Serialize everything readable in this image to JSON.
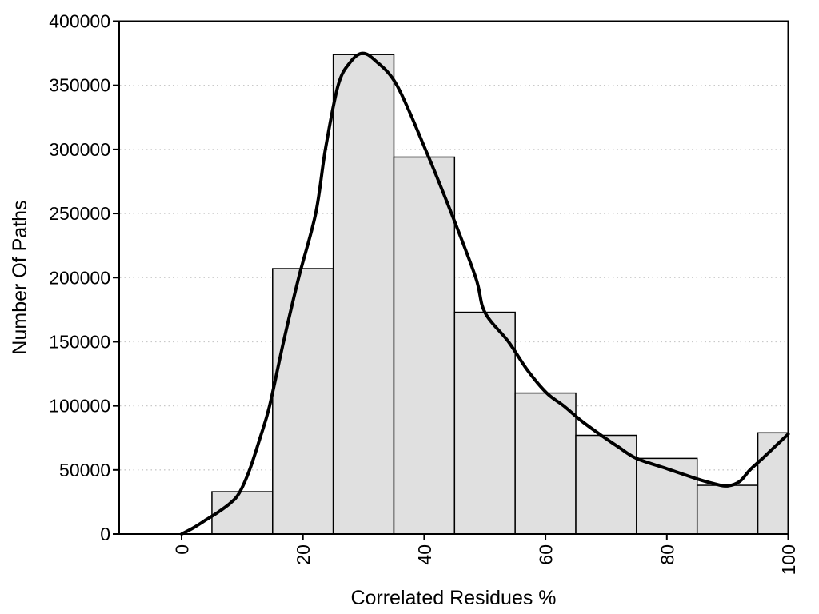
{
  "chart_data": {
    "type": "bar",
    "subtype": "histogram-with-density-curve",
    "title": "",
    "xlabel": "Correlated Residues %",
    "ylabel": "Number Of Paths",
    "xlim": [
      -10.3,
      100
    ],
    "ylim": [
      0,
      400000
    ],
    "x_ticks": [
      0,
      20,
      40,
      60,
      80,
      100
    ],
    "y_ticks": [
      0,
      50000,
      100000,
      150000,
      200000,
      250000,
      300000,
      350000,
      400000
    ],
    "grid": "horizontal-dotted",
    "grid_levels": [
      50000,
      100000,
      150000,
      200000,
      250000,
      300000,
      350000
    ],
    "legend_position": "none",
    "categories": [
      "5-15",
      "15-25",
      "25-35",
      "35-45",
      "45-55",
      "55-65",
      "65-75",
      "75-85",
      "85-95",
      "95-100"
    ],
    "bars": [
      {
        "from": 5,
        "to": 15,
        "value": 33000
      },
      {
        "from": 15,
        "to": 25,
        "value": 207000
      },
      {
        "from": 25,
        "to": 35,
        "value": 374000
      },
      {
        "from": 35,
        "to": 45,
        "value": 294000
      },
      {
        "from": 45,
        "to": 55,
        "value": 173000
      },
      {
        "from": 55,
        "to": 65,
        "value": 110000
      },
      {
        "from": 65,
        "to": 75,
        "value": 77000
      },
      {
        "from": 75,
        "to": 85,
        "value": 59000
      },
      {
        "from": 85,
        "to": 95,
        "value": 38000
      },
      {
        "from": 95,
        "to": 100,
        "value": 79000
      }
    ],
    "density_curve": [
      [
        0,
        0
      ],
      [
        2,
        5000
      ],
      [
        4,
        11000
      ],
      [
        6,
        17000
      ],
      [
        8,
        24000
      ],
      [
        9.5,
        32000
      ],
      [
        11.2,
        50000
      ],
      [
        13,
        76000
      ],
      [
        14.5,
        100000
      ],
      [
        16.8,
        150000
      ],
      [
        19.3,
        200000
      ],
      [
        22.1,
        250000
      ],
      [
        23.7,
        300000
      ],
      [
        25.8,
        350000
      ],
      [
        27.8,
        368000
      ],
      [
        29.8,
        375000
      ],
      [
        32,
        369000
      ],
      [
        35.5,
        350000
      ],
      [
        40.2,
        300000
      ],
      [
        44.5,
        250000
      ],
      [
        48.5,
        200000
      ],
      [
        50,
        173000
      ],
      [
        53.9,
        150000
      ],
      [
        57,
        128000
      ],
      [
        60.2,
        110000
      ],
      [
        63,
        100000
      ],
      [
        66,
        88000
      ],
      [
        69.5,
        76000
      ],
      [
        72,
        68000
      ],
      [
        75,
        59000
      ],
      [
        80,
        51000
      ],
      [
        85,
        43000
      ],
      [
        88,
        39000
      ],
      [
        90,
        37500
      ],
      [
        92,
        41000
      ],
      [
        93.7,
        50000
      ],
      [
        96,
        60000
      ],
      [
        98,
        69000
      ],
      [
        100,
        78000
      ]
    ],
    "colors": {
      "bar_fill": "#e0e0e0",
      "bar_stroke": "#000000",
      "curve": "#000000",
      "grid": "#c9c9c9",
      "axis": "#000000",
      "text": "#000000",
      "background": "#ffffff"
    }
  }
}
